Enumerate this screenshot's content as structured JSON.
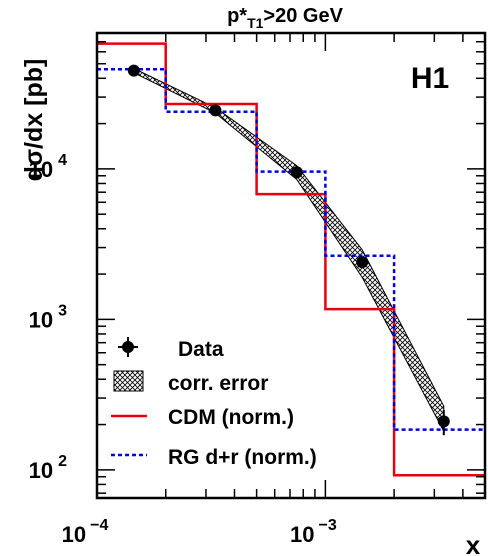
{
  "chart_data": {
    "type": "line",
    "title": "p*T1>20 GeV",
    "title_parts": {
      "base": "p*",
      "sub": "T1",
      "rest": ">20 GeV"
    },
    "experiment_label": "H1",
    "ylabel": "dσ/dx [pb]",
    "xlabel": "x",
    "x_scale": "log",
    "y_scale": "log",
    "xlim": [
      0.0001,
      0.005
    ],
    "ylim": [
      65,
      80000
    ],
    "x_ticks": [
      {
        "value": 0.0001,
        "base": "10",
        "exp": "−4"
      },
      {
        "value": 0.001,
        "base": "10",
        "exp": "−3"
      }
    ],
    "y_ticks": [
      {
        "value": 100,
        "base": "10",
        "exp": "2"
      },
      {
        "value": 1000,
        "base": "10",
        "exp": "3"
      },
      {
        "value": 10000,
        "base": "10",
        "exp": "4"
      }
    ],
    "series": [
      {
        "name": "Data",
        "style": "points",
        "color": "#000000",
        "x": [
          0.000145,
          0.00033,
          0.00075,
          0.00145,
          0.0033
        ],
        "y": [
          45000,
          24500,
          9500,
          2400,
          210
        ],
        "err_low": [
          2500,
          1500,
          600,
          200,
          40
        ],
        "err_high": [
          2500,
          1500,
          600,
          200,
          40
        ]
      },
      {
        "name": "corr. error",
        "style": "band",
        "fill": "hatched",
        "x": [
          0.000145,
          0.00033,
          0.00075,
          0.00145,
          0.0033
        ],
        "lower": [
          43500,
          23500,
          8500,
          1900,
          180
        ],
        "upper": [
          46500,
          25500,
          10500,
          2900,
          265
        ]
      },
      {
        "name": "CDM (norm.)",
        "style": "step",
        "color": "#e8000b",
        "edges": [
          0.0001,
          0.0002,
          0.0005,
          0.001,
          0.002,
          0.005
        ],
        "values": [
          68000,
          27000,
          6800,
          1170,
          92
        ]
      },
      {
        "name": "RG d+r (norm.)",
        "style": "step-dashed",
        "color": "#0000dd",
        "edges": [
          0.0001,
          0.0002,
          0.0005,
          0.001,
          0.002,
          0.005
        ],
        "values": [
          46000,
          24000,
          9600,
          2650,
          185
        ]
      }
    ],
    "legend_position": "bottom-left",
    "grid": false
  }
}
